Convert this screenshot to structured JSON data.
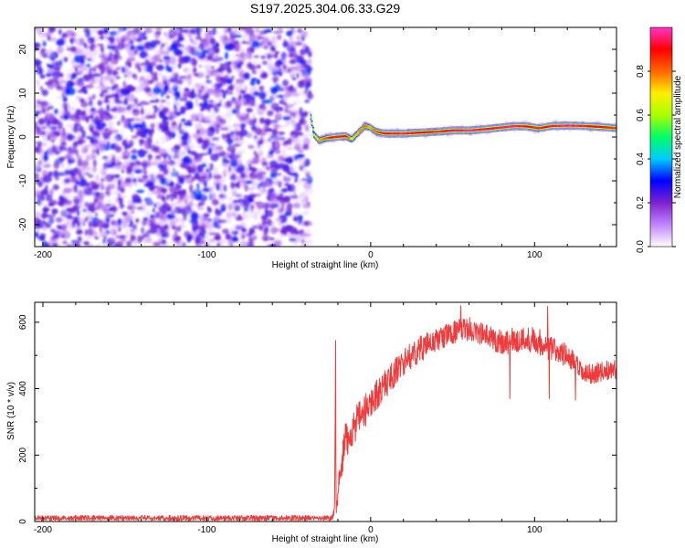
{
  "title": "S197.2025.304.06.33.G29",
  "chart_data": [
    {
      "type": "heatmap",
      "name": "spectrogram",
      "xlabel": "Height of straight line (km)",
      "ylabel": "Frequency (Hz)",
      "xlim": [
        -205,
        150
      ],
      "ylim": [
        -25,
        25
      ],
      "xticks": [
        -200,
        -100,
        0,
        100
      ],
      "yticks": [
        -20,
        -10,
        0,
        10,
        20
      ],
      "noise_region_x": [
        -205,
        -37
      ],
      "signal_ridge": {
        "x": [
          -37,
          -35,
          -32,
          -28,
          -22,
          -16,
          -12,
          -8,
          -4,
          -1,
          3,
          8,
          14,
          20,
          30,
          40,
          50,
          60,
          70,
          80,
          88,
          95,
          102,
          110,
          120,
          130,
          140,
          150
        ],
        "freq": [
          4.5,
          0.5,
          -0.8,
          -0.3,
          0,
          0.2,
          -0.5,
          1,
          2.5,
          2.2,
          1.2,
          0.8,
          0.8,
          0.8,
          1,
          1.2,
          1.5,
          1.5,
          1.8,
          2.2,
          2.5,
          2.4,
          2,
          2.5,
          2.6,
          2.5,
          2.3,
          2.0
        ],
        "amplitude": [
          0.55,
          0.65,
          0.75,
          0.8,
          0.95,
          0.9,
          0.7,
          0.75,
          0.8,
          0.75,
          0.8,
          0.9,
          0.95,
          0.97,
          0.9,
          0.85,
          0.95,
          0.97,
          0.92,
          0.95,
          0.97,
          0.9,
          0.85,
          0.95,
          0.97,
          0.95,
          0.9,
          0.85
        ]
      },
      "colorbar": {
        "label": "Normalized spectral amplitude",
        "ticks": [
          "0.0",
          "0.2",
          "0.4",
          "0.6",
          "0.8"
        ],
        "range": [
          0,
          1
        ],
        "colors": [
          "#ffffff",
          "#c084fc",
          "#7e22ce",
          "#0000ff",
          "#00ccff",
          "#00ff66",
          "#aaff00",
          "#ffee00",
          "#ff6600",
          "#ff0000",
          "#ff33cc"
        ]
      }
    },
    {
      "type": "line",
      "name": "snr",
      "xlabel": "Height of straight line (km)",
      "ylabel": "SNR (10 * v/v)",
      "xlim": [
        -205,
        150
      ],
      "ylim": [
        0,
        660
      ],
      "xticks": [
        -200,
        -100,
        0,
        100
      ],
      "yticks": [
        0,
        200,
        400,
        600
      ],
      "color": "#ef3b3b",
      "series_envelope": {
        "x": [
          -205,
          -37,
          -24,
          -22,
          -21.5,
          -21,
          -19,
          -16,
          -10,
          -5,
          0,
          5,
          10,
          20,
          30,
          40,
          50,
          60,
          70,
          80,
          90,
          100,
          110,
          120,
          125,
          130,
          140,
          150
        ],
        "mean": [
          12,
          12,
          12,
          35,
          430,
          40,
          120,
          230,
          290,
          320,
          360,
          390,
          420,
          480,
          520,
          545,
          570,
          580,
          560,
          540,
          545,
          550,
          520,
          500,
          470,
          440,
          450,
          460
        ],
        "jitter": [
          8,
          8,
          8,
          15,
          40,
          20,
          50,
          60,
          55,
          50,
          50,
          45,
          45,
          40,
          40,
          35,
          35,
          35,
          35,
          40,
          40,
          40,
          40,
          35,
          35,
          30,
          30,
          30
        ]
      },
      "spikes": [
        {
          "x": -21.3,
          "y": 545
        },
        {
          "x": 55,
          "y": 650
        },
        {
          "x": 108,
          "y": 648
        },
        {
          "x": 85,
          "y": 370
        },
        {
          "x": 109,
          "y": 370
        },
        {
          "x": 125,
          "y": 365
        }
      ]
    }
  ]
}
